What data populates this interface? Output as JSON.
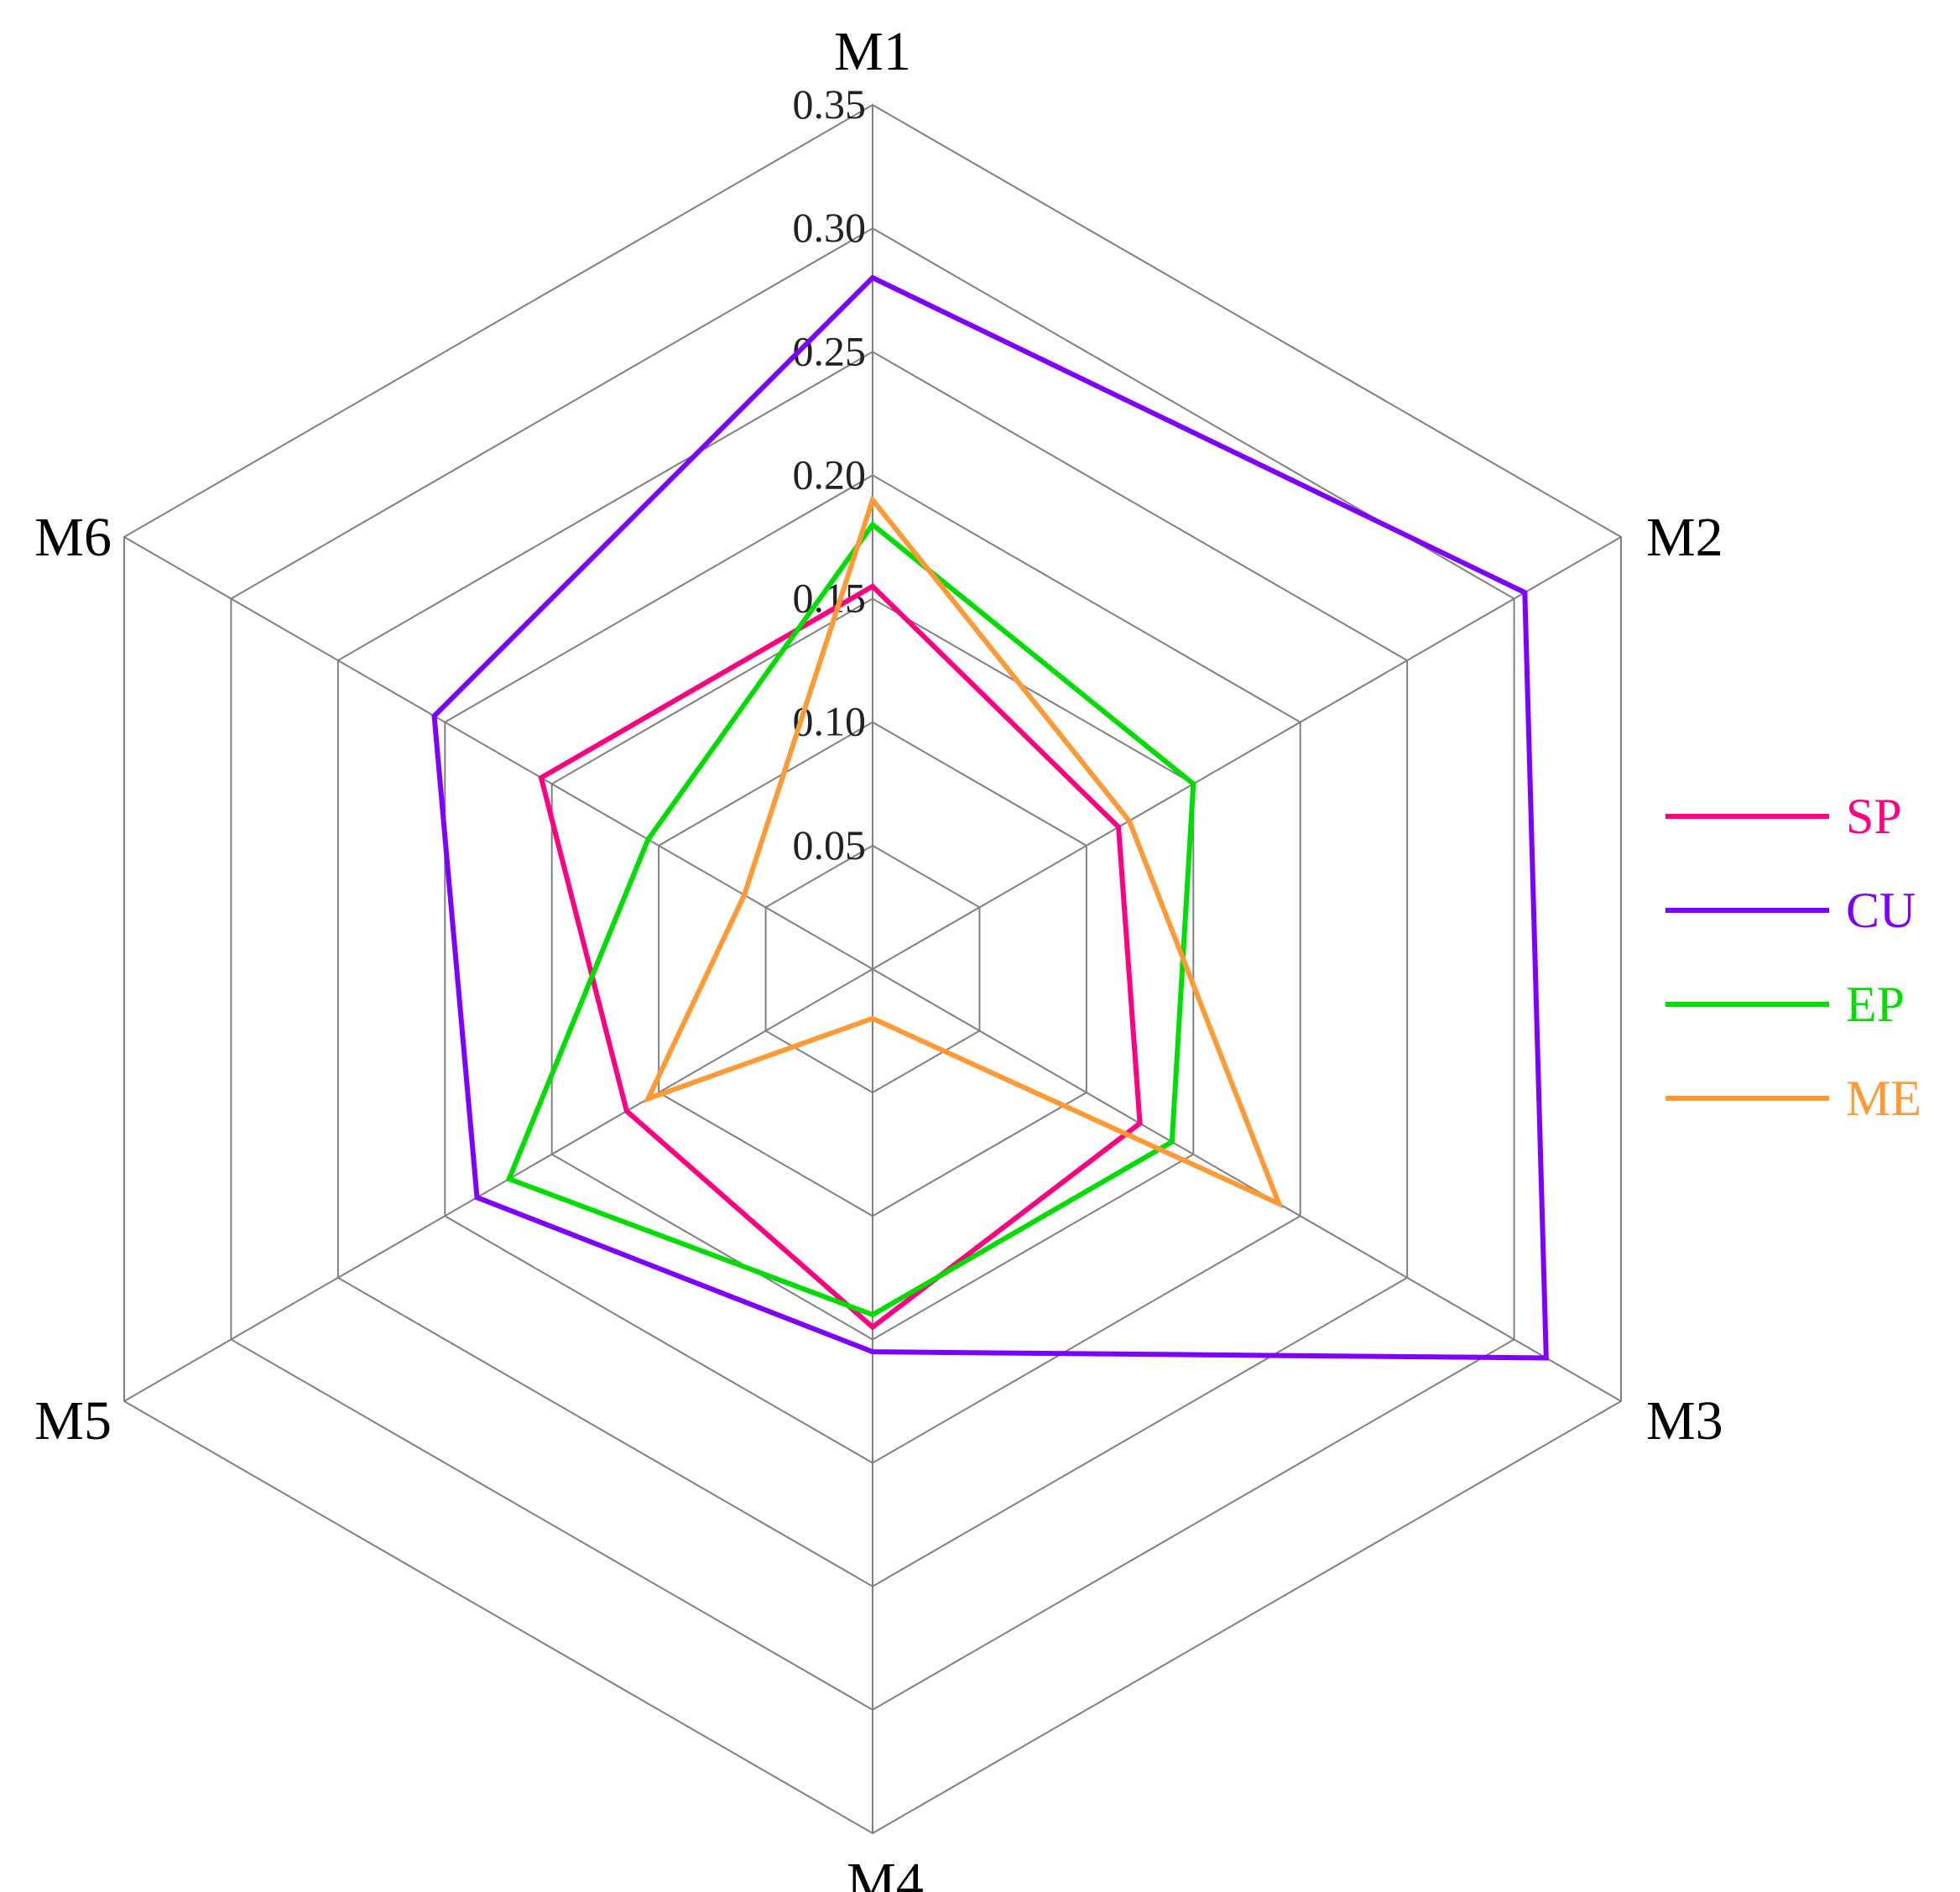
{
  "chart_data": {
    "type": "radar",
    "axes": [
      "M1",
      "M2",
      "M3",
      "M4",
      "M5",
      "M6"
    ],
    "ticks": [
      "0.05",
      "0.10",
      "0.15",
      "0.20",
      "0.25",
      "0.30",
      "0.35"
    ],
    "range": [
      0,
      0.35
    ],
    "grid": true,
    "legend_position": "right",
    "series": [
      {
        "name": "SP",
        "color": "#FF0080",
        "values": [
          0.155,
          0.115,
          0.125,
          0.145,
          0.115,
          0.155
        ]
      },
      {
        "name": "CU",
        "color": "#7F00FF",
        "values": [
          0.28,
          0.305,
          0.315,
          0.155,
          0.185,
          0.205
        ]
      },
      {
        "name": "EP",
        "color": "#00DD00",
        "values": [
          0.18,
          0.15,
          0.14,
          0.14,
          0.17,
          0.105
        ]
      },
      {
        "name": "ME",
        "color": "#FF9933",
        "values": [
          0.19,
          0.12,
          0.19,
          0.02,
          0.105,
          0.06
        ]
      }
    ]
  }
}
